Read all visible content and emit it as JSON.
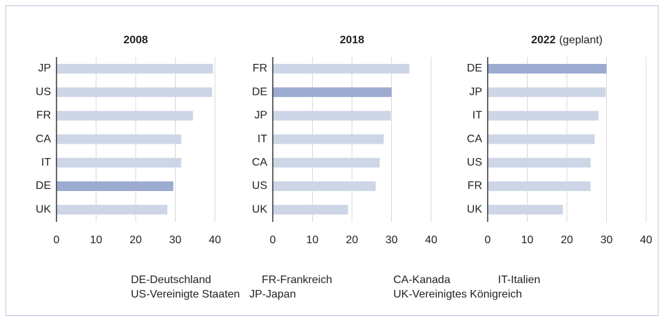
{
  "chart_data": [
    {
      "type": "barh",
      "title": "2008",
      "categories": [
        "JP",
        "US",
        "FR",
        "CA",
        "IT",
        "DE",
        "UK"
      ],
      "values": [
        39.5,
        39.3,
        34.5,
        31.5,
        31.5,
        29.5,
        28
      ],
      "colors": [
        "#cdd6e6",
        "#cdd6e6",
        "#cdd6e6",
        "#cdd6e6",
        "#cdd6e6",
        "#9cabcf",
        "#cdd6e6"
      ],
      "xlim": [
        0,
        40
      ],
      "xticks": [
        0,
        10,
        20,
        30,
        40
      ],
      "grid": true
    },
    {
      "type": "barh",
      "title": "2018",
      "categories": [
        "FR",
        "DE",
        "JP",
        "IT",
        "CA",
        "US",
        "UK"
      ],
      "values": [
        34.5,
        30,
        29.8,
        28,
        27,
        26,
        19
      ],
      "colors": [
        "#cdd6e6",
        "#9cabcf",
        "#cdd6e6",
        "#cdd6e6",
        "#cdd6e6",
        "#cdd6e6",
        "#cdd6e6"
      ],
      "xlim": [
        0,
        40
      ],
      "xticks": [
        0,
        10,
        20,
        30,
        40
      ],
      "grid": true
    },
    {
      "type": "barh",
      "title": "2022",
      "title_note": "(geplant)",
      "categories": [
        "DE",
        "JP",
        "IT",
        "CA",
        "US",
        "FR",
        "UK"
      ],
      "values": [
        30,
        29.8,
        28,
        27,
        26,
        26,
        19
      ],
      "colors": [
        "#9cabcf",
        "#cdd6e6",
        "#cdd6e6",
        "#cdd6e6",
        "#cdd6e6",
        "#cdd6e6",
        "#cdd6e6"
      ],
      "xlim": [
        0,
        40
      ],
      "xticks": [
        0,
        10,
        20,
        30,
        40
      ],
      "grid": true
    }
  ],
  "legend": [
    "DE-Deutschland",
    "FR-Frankreich",
    "CA-Kanada",
    "IT-Italien",
    "US-Vereinigte Staaten",
    "JP-Japan",
    "UK-Vereinigtes Königreich"
  ]
}
